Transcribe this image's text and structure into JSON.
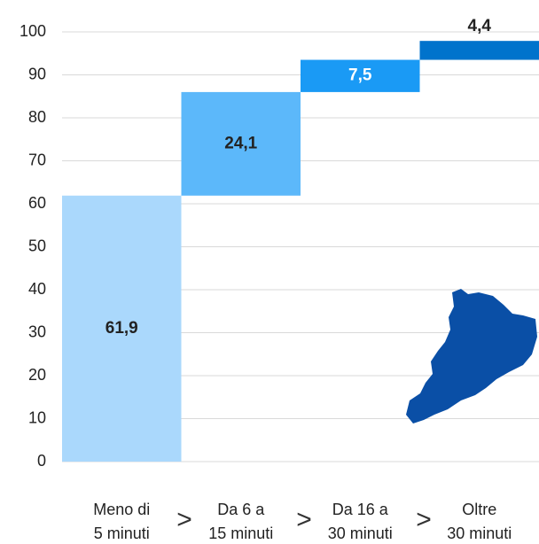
{
  "chart_data": {
    "type": "waterfall",
    "categories": [
      "Meno di 5 minuti",
      "Da 6 a 15 minuti",
      "Da 16 a 30 minuti",
      "Oltre 30 minuti"
    ],
    "values": [
      61.9,
      24.1,
      7.5,
      4.4
    ],
    "value_labels": [
      "61,9",
      "24,1",
      "7,5",
      "4,4"
    ],
    "colors": [
      "#aad8fc",
      "#5cb8fa",
      "#1a9af5",
      "#0073cc"
    ],
    "ylim": [
      0,
      100
    ],
    "yticks": [
      0,
      10,
      20,
      30,
      40,
      50,
      60,
      70,
      80,
      90,
      100
    ],
    "grid": true
  }
}
